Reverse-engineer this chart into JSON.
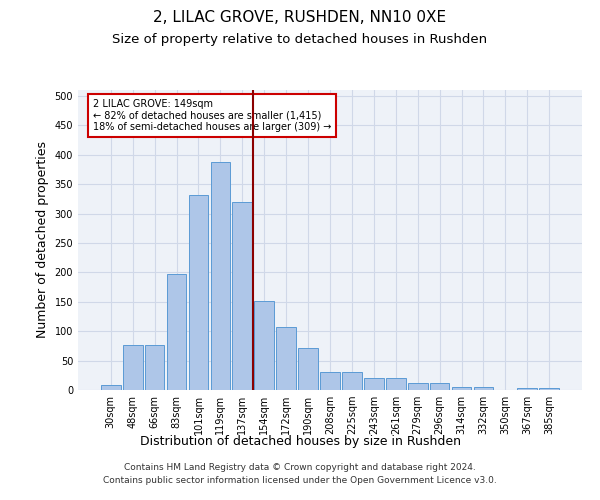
{
  "title": "2, LILAC GROVE, RUSHDEN, NN10 0XE",
  "subtitle": "Size of property relative to detached houses in Rushden",
  "xlabel": "Distribution of detached houses by size in Rushden",
  "ylabel": "Number of detached properties",
  "footer_line1": "Contains HM Land Registry data © Crown copyright and database right 2024.",
  "footer_line2": "Contains public sector information licensed under the Open Government Licence v3.0.",
  "bar_labels": [
    "30sqm",
    "48sqm",
    "66sqm",
    "83sqm",
    "101sqm",
    "119sqm",
    "137sqm",
    "154sqm",
    "172sqm",
    "190sqm",
    "208sqm",
    "225sqm",
    "243sqm",
    "261sqm",
    "279sqm",
    "296sqm",
    "314sqm",
    "332sqm",
    "350sqm",
    "367sqm",
    "385sqm"
  ],
  "bar_values": [
    9,
    77,
    77,
    198,
    332,
    388,
    319,
    151,
    107,
    72,
    30,
    30,
    20,
    20,
    12,
    12,
    5,
    5,
    0,
    3,
    3
  ],
  "bar_color": "#aec6e8",
  "bar_edge_color": "#5b9bd5",
  "vline_color": "#8b0000",
  "annotation_text": "2 LILAC GROVE: 149sqm\n← 82% of detached houses are smaller (1,415)\n18% of semi-detached houses are larger (309) →",
  "annotation_box_color": "#ffffff",
  "annotation_box_edge_color": "#cc0000",
  "ylim": [
    0,
    510
  ],
  "yticks": [
    0,
    50,
    100,
    150,
    200,
    250,
    300,
    350,
    400,
    450,
    500
  ],
  "grid_color": "#d0d8e8",
  "background_color": "#eef2f8",
  "title_fontsize": 11,
  "subtitle_fontsize": 9.5,
  "label_fontsize": 9,
  "tick_fontsize": 7,
  "footer_fontsize": 6.5,
  "annotation_fontsize": 7
}
